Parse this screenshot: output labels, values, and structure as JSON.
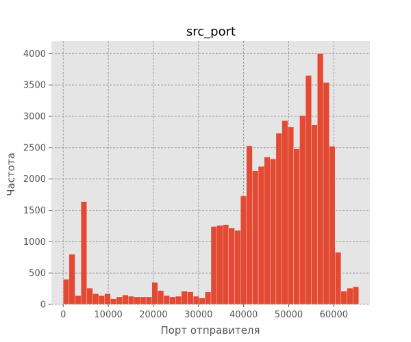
{
  "chart_data": {
    "type": "bar",
    "title": "src_port",
    "xlabel": "Порт отправителя",
    "ylabel": "Частота",
    "xlim": [
      -2620,
      68000
    ],
    "ylim": [
      0,
      4200
    ],
    "grid": true,
    "legend": "none",
    "colors": {
      "bar": "#E24A33",
      "plot_bg": "#E5E5E5",
      "grid": "#8c8c8c",
      "tick": "#555555",
      "page_bg": "#FFFFFF"
    },
    "x_ticks": [
      0,
      10000,
      20000,
      30000,
      40000,
      50000,
      60000
    ],
    "x_tick_labels": [
      "0",
      "10000",
      "20000",
      "30000",
      "40000",
      "50000",
      "60000"
    ],
    "y_ticks": [
      0,
      500,
      1000,
      1500,
      2000,
      2500,
      3000,
      3500,
      4000
    ],
    "y_tick_labels": [
      "0",
      "500",
      "1000",
      "1500",
      "2000",
      "2500",
      "3000",
      "3500",
      "4000"
    ],
    "bin_start": 0,
    "bin_width": 1310.7,
    "values": [
      400,
      800,
      140,
      1640,
      260,
      170,
      140,
      170,
      90,
      120,
      150,
      130,
      120,
      120,
      120,
      350,
      220,
      140,
      120,
      130,
      210,
      200,
      130,
      100,
      200,
      1240,
      1260,
      1270,
      1220,
      1180,
      1730,
      2530,
      2130,
      2200,
      2350,
      2320,
      2730,
      2930,
      2830,
      2480,
      3010,
      3650,
      2860,
      4000,
      3540,
      2520,
      830,
      210,
      260,
      280
    ]
  }
}
